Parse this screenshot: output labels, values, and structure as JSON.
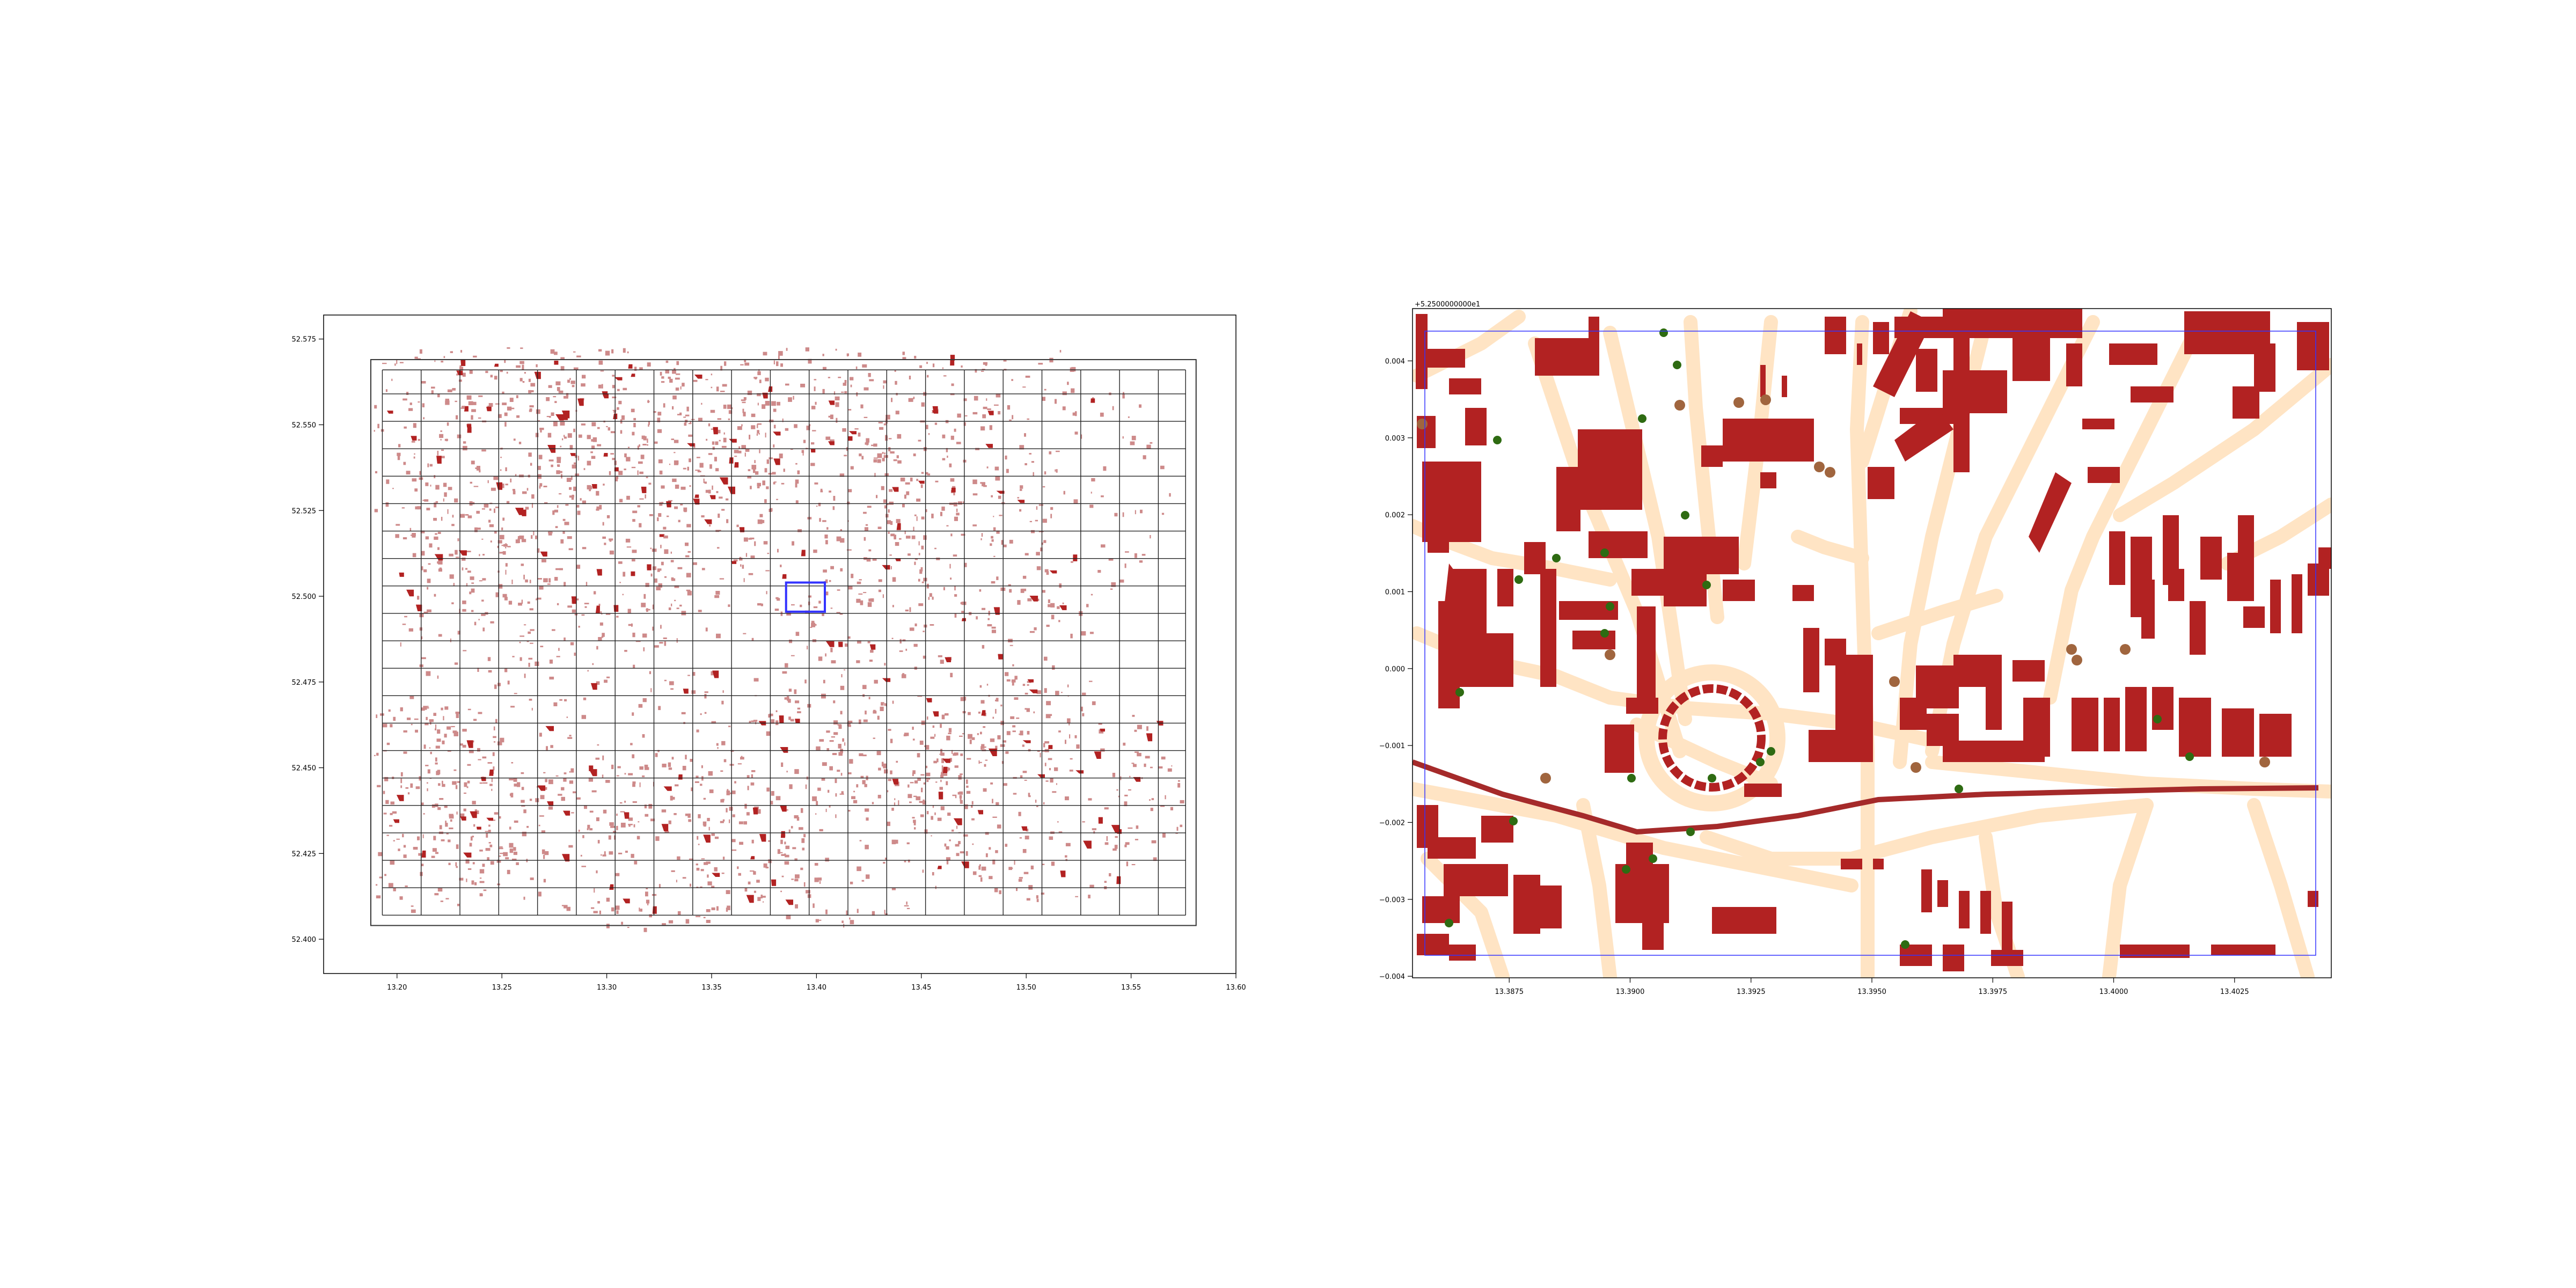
{
  "colors": {
    "building": "#b22222",
    "building_overview": "#a52a2a",
    "street": "#ffe4c4",
    "grid": "#222222",
    "boundary": "#333333",
    "highlight": "#3333ff",
    "tree_green": "#2e6b12",
    "tree_brown": "#a0653e",
    "rail": "#a52a2a",
    "axes": "#000000"
  },
  "overview": {
    "x_ticks": [
      "13.20",
      "13.25",
      "13.30",
      "13.35",
      "13.40",
      "13.45",
      "13.50",
      "13.55",
      "13.60"
    ],
    "y_ticks": [
      "52.575",
      "52.550",
      "52.525",
      "52.500",
      "52.475",
      "52.450",
      "52.425",
      "52.400"
    ],
    "xlim": [
      13.165,
      13.6
    ],
    "ylim": [
      52.39,
      52.582
    ],
    "grid_x": [
      13.193,
      13.2115,
      13.23,
      13.2485,
      13.267,
      13.2855,
      13.304,
      13.3225,
      13.341,
      13.3595,
      13.378,
      13.3965,
      13.415,
      13.4335,
      13.452,
      13.4705,
      13.489,
      13.5075,
      13.526,
      13.5445,
      13.563,
      13.576
    ],
    "grid_y": [
      52.407,
      52.415,
      52.423,
      52.431,
      52.439,
      52.447,
      52.455,
      52.463,
      52.471,
      52.479,
      52.487,
      52.495,
      52.503,
      52.511,
      52.519,
      52.527,
      52.535,
      52.543,
      52.551,
      52.559,
      52.566
    ],
    "highlight": {
      "x": [
        13.3855,
        13.404
      ],
      "y": [
        52.4955,
        52.504
      ]
    }
  },
  "detail": {
    "offset_text": "+5.2500000000e1",
    "x_ticks": [
      "13.3875",
      "13.3900",
      "13.3925",
      "13.3950",
      "13.3975",
      "13.4000",
      "13.4025"
    ],
    "y_ticks": [
      "0.004",
      "0.003",
      "0.002",
      "0.001",
      "0.000",
      "−0.001",
      "−0.002",
      "−0.003",
      "−0.004"
    ],
    "xlim": [
      13.3855,
      13.4045
    ],
    "ylim": [
      -0.00402,
      0.00468
    ]
  }
}
